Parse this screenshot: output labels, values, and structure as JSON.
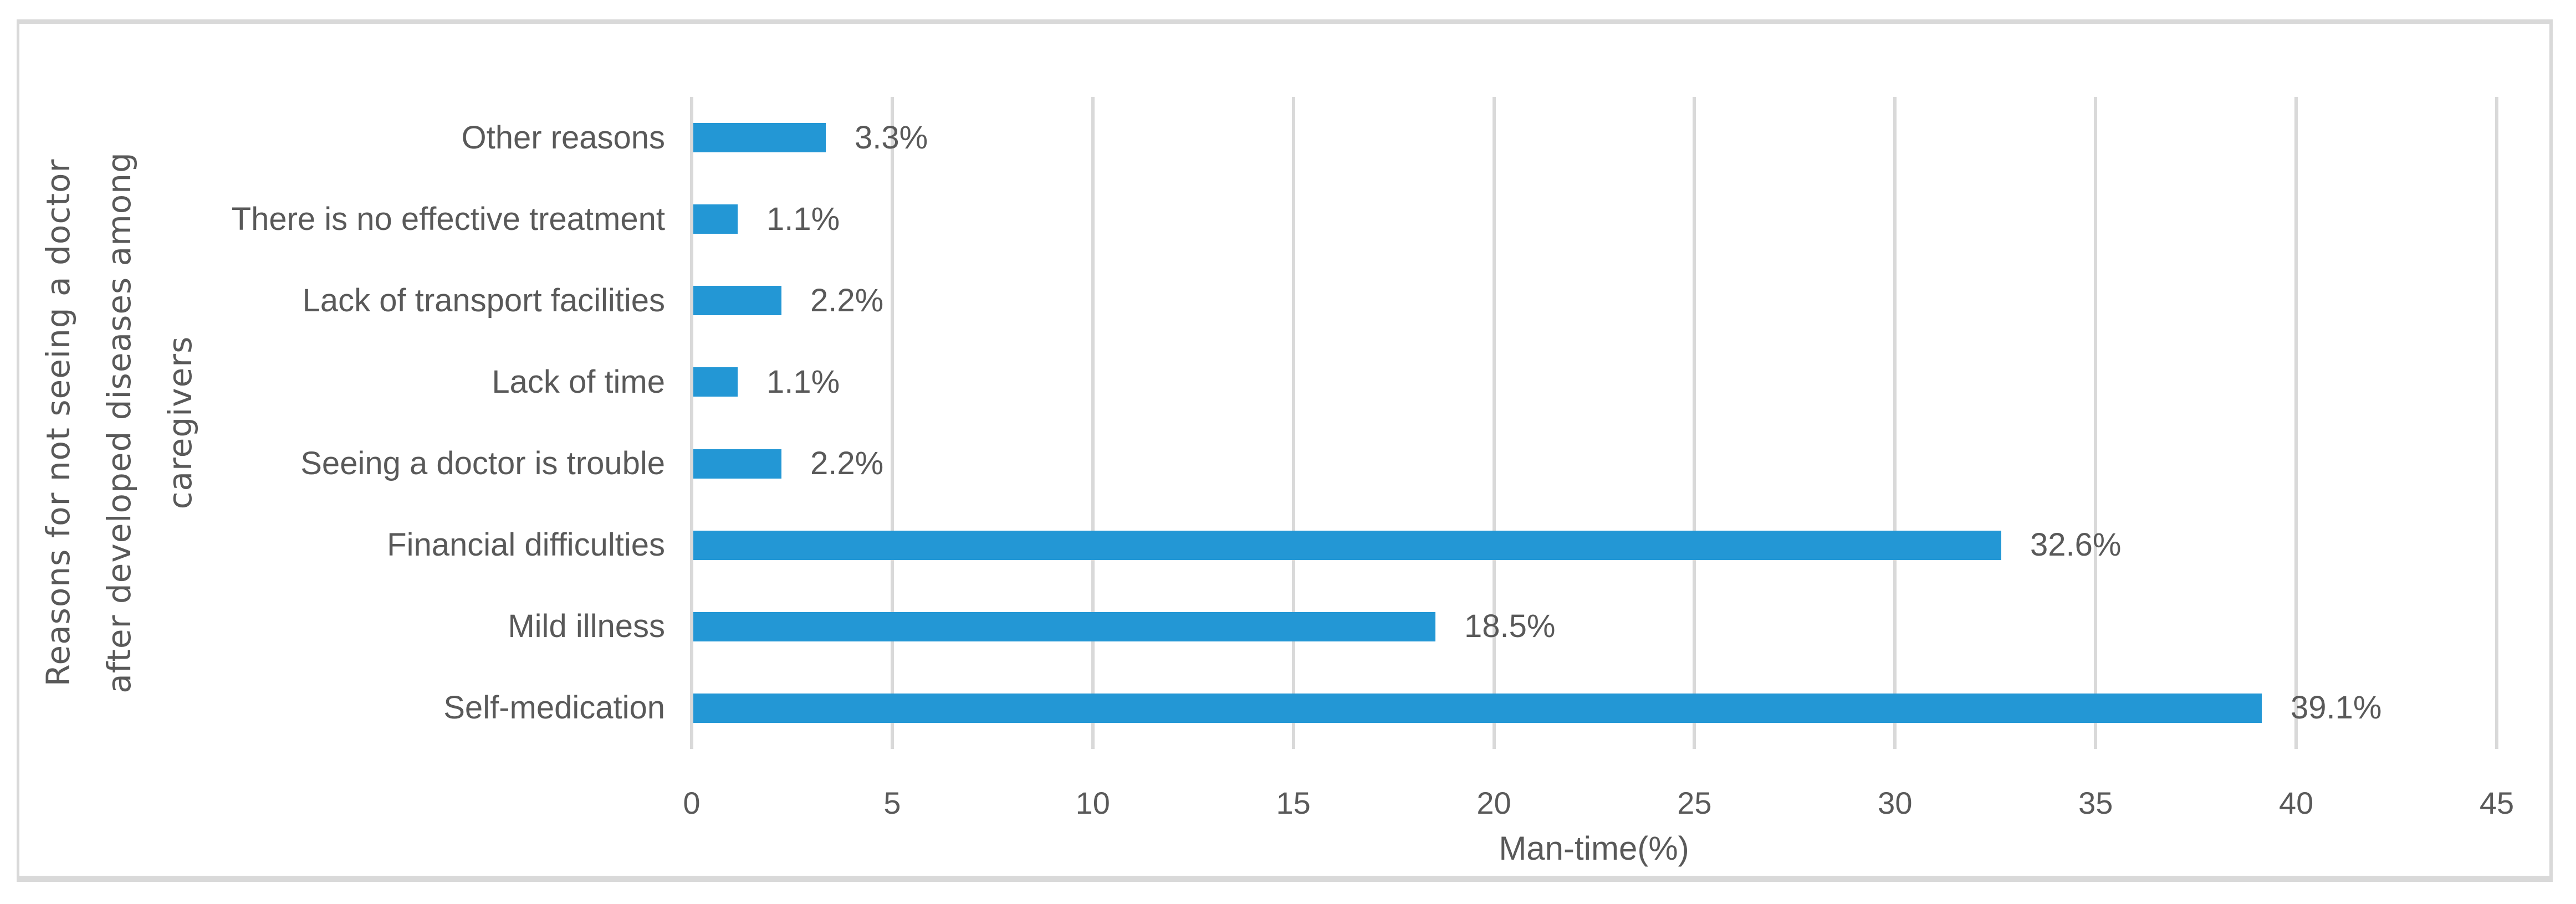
{
  "chart_data": {
    "type": "bar",
    "orientation": "horizontal",
    "categories": [
      "Other reasons",
      "There is no effective treatment",
      "Lack of transport facilities",
      "Lack of time",
      "Seeing a doctor is trouble",
      "Financial difficulties",
      "Mild illness",
      "Self-medication"
    ],
    "values": [
      3.3,
      1.1,
      2.2,
      1.1,
      2.2,
      32.6,
      18.5,
      39.1
    ],
    "data_labels": [
      "3.3%",
      "1.1%",
      "2.2%",
      "1.1%",
      "2.2%",
      "32.6%",
      "18.5%",
      "39.1%"
    ],
    "xlabel": "Man-time(%)",
    "ylabel_lines": [
      "Reasons for not seeing a doctor",
      "after developed diseases among",
      "caregivers"
    ],
    "xlim": [
      0,
      45
    ],
    "xticks": [
      "0",
      "5",
      "10",
      "15",
      "20",
      "25",
      "30",
      "35",
      "40",
      "45"
    ],
    "grid": "vertical-only",
    "legend": "none",
    "colors": {
      "bar": "#2397d5",
      "gridline": "#d9d9d9",
      "frame_border": "#d9d9d9",
      "text": "#595959"
    }
  }
}
